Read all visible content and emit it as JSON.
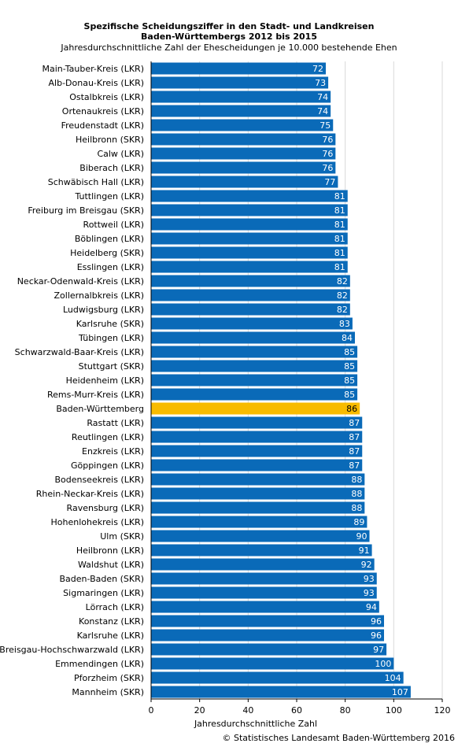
{
  "chart_data": {
    "type": "bar",
    "orientation": "horizontal",
    "title_lines": [
      "Spezifische Scheidungsziffer in den Stadt- und Landkreisen",
      "Baden-Württembergs  2012 bis 2015"
    ],
    "subtitle": "Jahresdurchschnittliche Zahl der Ehescheidungen je 10.000 bestehende Ehen",
    "xlabel": "Jahresdurchschnittliche Zahl",
    "ylabel": "",
    "xlim": [
      0,
      120
    ],
    "ticks": [
      0,
      20,
      40,
      60,
      80,
      100,
      120
    ],
    "grid": true,
    "bar_color": "#0a6ab8",
    "highlight_color": "#f8bb00",
    "highlight_category": "Baden-Württemberg",
    "categories": [
      "Main-Tauber-Kreis (LKR)",
      "Alb-Donau-Kreis (LKR)",
      "Ostalbkreis (LKR)",
      "Ortenaukreis (LKR)",
      "Freudenstadt (LKR)",
      "Heilbronn (SKR)",
      "Calw (LKR)",
      "Biberach (LKR)",
      "Schwäbisch Hall (LKR)",
      "Tuttlingen (LKR)",
      "Freiburg im Breisgau (SKR)",
      "Rottweil (LKR)",
      "Böblingen (LKR)",
      "Heidelberg (SKR)",
      "Esslingen (LKR)",
      "Neckar-Odenwald-Kreis (LKR)",
      "Zollernalbkreis (LKR)",
      "Ludwigsburg (LKR)",
      "Karlsruhe (SKR)",
      "Tübingen (LKR)",
      "Schwarzwald-Baar-Kreis (LKR)",
      "Stuttgart (SKR)",
      "Heidenheim (LKR)",
      "Rems-Murr-Kreis  (LKR)",
      "Baden-Württemberg",
      "Rastatt (LKR)",
      "Reutlingen (LKR)",
      "Enzkreis (LKR)",
      "Göppingen (LKR)",
      "Bodenseekreis (LKR)",
      "Rhein-Neckar-Kreis (LKR)",
      "Ravensburg (LKR)",
      "Hohenlohekreis (LKR)",
      "Ulm (SKR)",
      "Heilbronn (LKR)",
      "Waldshut (LKR)",
      "Baden-Baden (SKR)",
      "Sigmaringen (LKR)",
      "Lörrach (LKR)",
      "Konstanz (LKR)",
      "Karlsruhe (LKR)",
      "Breisgau-Hochschwarzwald (LKR)",
      "Emmendingen (LKR)",
      "Pforzheim (SKR)",
      "Mannheim (SKR)"
    ],
    "values": [
      72,
      73,
      74,
      74,
      75,
      76,
      76,
      76,
      77,
      81,
      81,
      81,
      81,
      81,
      81,
      82,
      82,
      82,
      83,
      84,
      85,
      85,
      85,
      85,
      86,
      87,
      87,
      87,
      87,
      88,
      88,
      88,
      89,
      90,
      91,
      92,
      93,
      93,
      94,
      96,
      96,
      97,
      100,
      104,
      107
    ]
  },
  "footer": "© Statistisches Landesamt Baden-Württemberg 2016"
}
